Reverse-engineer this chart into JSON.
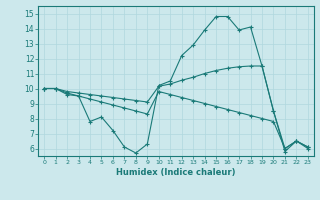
{
  "xlabel": "Humidex (Indice chaleur)",
  "xlim": [
    0,
    23
  ],
  "ylim": [
    6,
    15
  ],
  "yticks": [
    6,
    7,
    8,
    9,
    10,
    11,
    12,
    13,
    14,
    15
  ],
  "xticks": [
    0,
    1,
    2,
    3,
    4,
    5,
    6,
    7,
    8,
    9,
    10,
    11,
    12,
    13,
    14,
    15,
    16,
    17,
    18,
    19,
    20,
    21,
    22,
    23
  ],
  "background_color": "#cce8ec",
  "line_color": "#1a7a78",
  "grid_color": "#b0d8de",
  "line1_x": [
    0,
    1,
    2,
    3,
    4,
    5,
    6,
    7,
    8,
    9,
    10,
    11,
    12,
    13,
    14,
    15,
    16,
    17,
    18,
    19,
    20,
    21,
    22,
    23
  ],
  "line1_y": [
    10,
    10,
    9.6,
    9.5,
    7.8,
    8.1,
    7.2,
    6.1,
    5.7,
    6.3,
    10.2,
    10.5,
    12.2,
    12.9,
    13.9,
    14.8,
    14.8,
    13.9,
    14.1,
    11.5,
    8.5,
    5.8,
    6.5,
    6.0
  ],
  "line2_x": [
    0,
    1,
    2,
    3,
    4,
    5,
    6,
    7,
    8,
    9,
    10,
    11,
    12,
    13,
    14,
    15,
    16,
    17,
    18,
    19,
    20,
    21,
    22,
    23
  ],
  "line2_y": [
    10.0,
    10.0,
    9.8,
    9.7,
    9.6,
    9.5,
    9.4,
    9.3,
    9.2,
    9.1,
    10.15,
    10.3,
    10.55,
    10.75,
    11.0,
    11.2,
    11.35,
    11.45,
    11.5,
    11.5,
    8.5,
    6.0,
    6.5,
    6.1
  ],
  "line3_x": [
    0,
    1,
    2,
    3,
    4,
    5,
    6,
    7,
    8,
    9,
    10,
    11,
    12,
    13,
    14,
    15,
    16,
    17,
    18,
    19,
    20,
    21,
    22,
    23
  ],
  "line3_y": [
    10.0,
    10.0,
    9.7,
    9.5,
    9.3,
    9.1,
    8.9,
    8.7,
    8.5,
    8.3,
    9.8,
    9.6,
    9.4,
    9.2,
    9.0,
    8.8,
    8.6,
    8.4,
    8.2,
    8.0,
    7.8,
    6.0,
    6.5,
    6.1
  ]
}
